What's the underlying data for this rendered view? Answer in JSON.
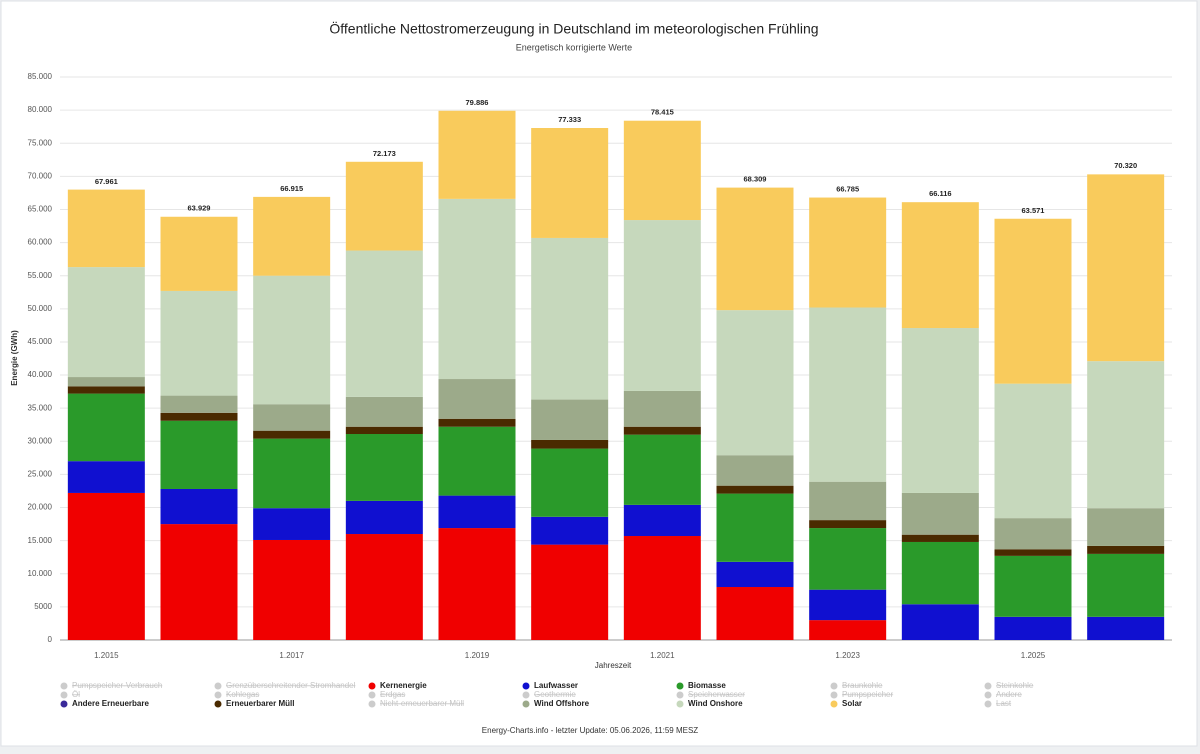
{
  "chart_data": {
    "type": "stacked-bar",
    "title": "Öffentliche Nettostromerzeugung in Deutschland im meteorologischen Frühling",
    "subtitle": "Energetisch korrigierte Werte",
    "x_label": "Jahreszeit",
    "y_label": "Energie (GWh)",
    "source": "Energy-Charts.info - letzter Update: 05.06.2026, 11:59 MESZ",
    "categories": [
      "1.2015",
      null,
      "1.2017",
      null,
      "1.2019",
      null,
      "1.2021",
      null,
      "1.2023",
      null,
      "1.2025",
      null
    ],
    "ylim": [
      0,
      85000
    ],
    "yticks": [
      0,
      5000,
      {
        "value": 10000,
        "label": "10.000"
      },
      {
        "value": 15000,
        "label": "15.000"
      },
      {
        "value": 20000,
        "label": "20.000"
      },
      {
        "value": 25000,
        "label": "25.000"
      },
      {
        "value": 30000,
        "label": "30.000"
      },
      {
        "value": 35000,
        "label": "35.000"
      },
      {
        "value": 40000,
        "label": "40.000"
      },
      {
        "value": 45000,
        "label": "45.000"
      },
      {
        "value": 50000,
        "label": "50.000"
      },
      {
        "value": 55000,
        "label": "55.000"
      },
      {
        "value": 60000,
        "label": "60.000"
      },
      {
        "value": 65000,
        "label": "65.000"
      },
      {
        "value": 70000,
        "label": "70.000"
      },
      {
        "value": 75000,
        "label": "75.000"
      },
      {
        "value": 80000,
        "label": "80.000"
      },
      {
        "value": 85000,
        "label": "85.000"
      }
    ],
    "grid": true,
    "totals": {
      "values": [
        67961,
        63929,
        66915,
        72173,
        79886,
        77333,
        78415,
        68309,
        66785,
        66116,
        63571,
        70320
      ],
      "value_labels": [
        "67.961",
        "63.929",
        "66.915",
        "72.173",
        "79.886",
        "77.333",
        "78.415",
        "68.309",
        "66.785",
        "66.116",
        "63.571",
        "70.320"
      ]
    },
    "series": [
      {
        "name": "Pumpspeicher-Verbrauch",
        "color": "#cccccc",
        "hidden": true
      },
      {
        "name": "Grenzüberschreitender Stromhandel",
        "color": "#cccccc",
        "hidden": true
      },
      {
        "name": "Kernenergie",
        "color": "#f00000",
        "values": [
          22200,
          17500,
          15100,
          16000,
          16900,
          14400,
          15700,
          8000,
          3000,
          0,
          0,
          0
        ]
      },
      {
        "name": "Laufwasser",
        "color": "#1010d0",
        "values": [
          4800,
          5300,
          4800,
          5000,
          4900,
          4200,
          4700,
          3800,
          4600,
          5400,
          3500,
          3500
        ]
      },
      {
        "name": "Biomasse",
        "color": "#2a9a2a",
        "values": [
          10200,
          10300,
          10500,
          10100,
          10400,
          10300,
          10600,
          10300,
          9300,
          9400,
          9200,
          9500
        ]
      },
      {
        "name": "Braunkohle",
        "color": "#cccccc",
        "hidden": true
      },
      {
        "name": "Steinkohle",
        "color": "#cccccc",
        "hidden": true
      },
      {
        "name": "Öl",
        "color": "#cccccc",
        "hidden": true
      },
      {
        "name": "Kohlegas",
        "color": "#cccccc",
        "hidden": true
      },
      {
        "name": "Erdgas",
        "color": "#cccccc",
        "hidden": true
      },
      {
        "name": "Geothermie",
        "color": "#cccccc",
        "hidden": true
      },
      {
        "name": "Speicherwasser",
        "color": "#cccccc",
        "hidden": true
      },
      {
        "name": "Pumpspeicher",
        "color": "#cccccc",
        "hidden": true
      },
      {
        "name": "Andere",
        "color": "#cccccc",
        "hidden": true
      },
      {
        "name": "Andere Erneuerbare",
        "color": "#3a2a9a"
      },
      {
        "name": "Erneuerbarer Müll",
        "color": "#4a2a00",
        "values": [
          1100,
          1200,
          1200,
          1100,
          1200,
          1300,
          1200,
          1200,
          1200,
          1100,
          1000,
          1200
        ]
      },
      {
        "name": "Nicht-erneuerbarer Müll",
        "color": "#cccccc",
        "hidden": true
      },
      {
        "name": "Wind Offshore",
        "color": "#9caa8a",
        "values": [
          1400,
          2600,
          4000,
          4500,
          6000,
          6100,
          5400,
          4600,
          5800,
          6300,
          4700,
          5700
        ]
      },
      {
        "name": "Wind Onshore",
        "color": "#c6d8bc",
        "values": [
          16600,
          15800,
          19400,
          22100,
          27200,
          24400,
          25800,
          21900,
          26300,
          24900,
          20300,
          22200
        ]
      },
      {
        "name": "Solar",
        "color": "#f9cb5c",
        "values": [
          11700,
          11200,
          11900,
          13400,
          13300,
          16600,
          15000,
          18500,
          16600,
          19000,
          24900,
          28200
        ]
      },
      {
        "name": "Last",
        "color": "#cccccc",
        "hidden": true
      }
    ]
  }
}
